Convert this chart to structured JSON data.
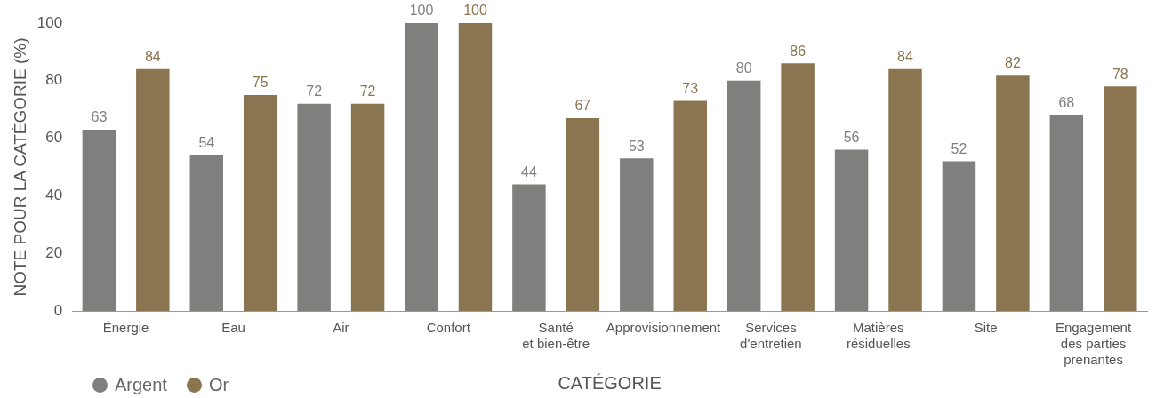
{
  "chart_data": {
    "type": "bar",
    "xlabel": "CATÉGORIE",
    "ylabel": "NOTE POUR LA CATÉGORIE (%)",
    "categories": [
      "Énergie",
      "Eau",
      "Air",
      "Confort",
      "Santé\net bien-être",
      "Approvisionnement",
      "Services\nd'entretien",
      "Matières\nrésiduelles",
      "Site",
      "Engagement\ndes parties\nprenantes"
    ],
    "series": [
      {
        "name": "Argent",
        "color": "#7f7f7d",
        "values": [
          63,
          54,
          72,
          100,
          44,
          53,
          80,
          56,
          52,
          68
        ]
      },
      {
        "name": "Or",
        "color": "#8b7550",
        "values": [
          84,
          75,
          72,
          100,
          67,
          73,
          86,
          84,
          82,
          78
        ]
      }
    ],
    "ylim": [
      0,
      100
    ],
    "yticks": [
      0,
      20,
      40,
      60,
      80,
      100
    ],
    "grid": false,
    "legend": "bottom left",
    "data_labels": true
  }
}
